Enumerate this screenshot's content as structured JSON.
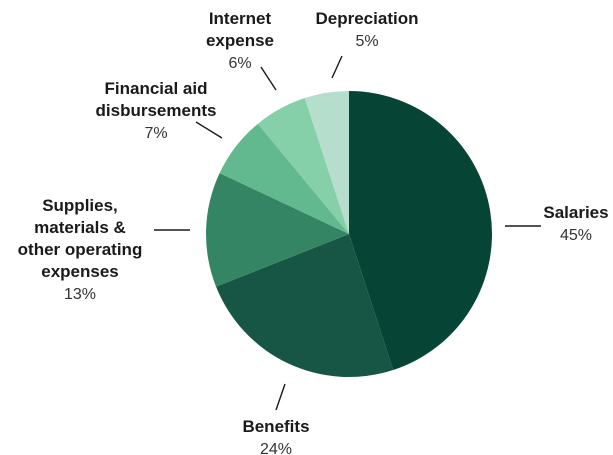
{
  "chart_data": {
    "type": "pie",
    "title": "",
    "start_angle_deg": 0,
    "direction": "clockwise",
    "slices": [
      {
        "label": [
          "Salaries"
        ],
        "value": 45,
        "pct_label": "45%",
        "color": "#064535"
      },
      {
        "label": [
          "Benefits"
        ],
        "value": 24,
        "pct_label": "24%",
        "color": "#175644"
      },
      {
        "label": [
          "Supplies,",
          "materials &",
          "other operating",
          "expenses"
        ],
        "value": 13,
        "pct_label": "13%",
        "color": "#348563"
      },
      {
        "label": [
          "Financial aid",
          "disbursements"
        ],
        "value": 7,
        "pct_label": "7%",
        "color": "#62b88f"
      },
      {
        "label": [
          "Internet",
          "expense"
        ],
        "value": 6,
        "pct_label": "6%",
        "color": "#86d0a9"
      },
      {
        "label": [
          "Depreciation"
        ],
        "value": 5,
        "pct_label": "5%",
        "color": "#b6decc"
      }
    ]
  }
}
